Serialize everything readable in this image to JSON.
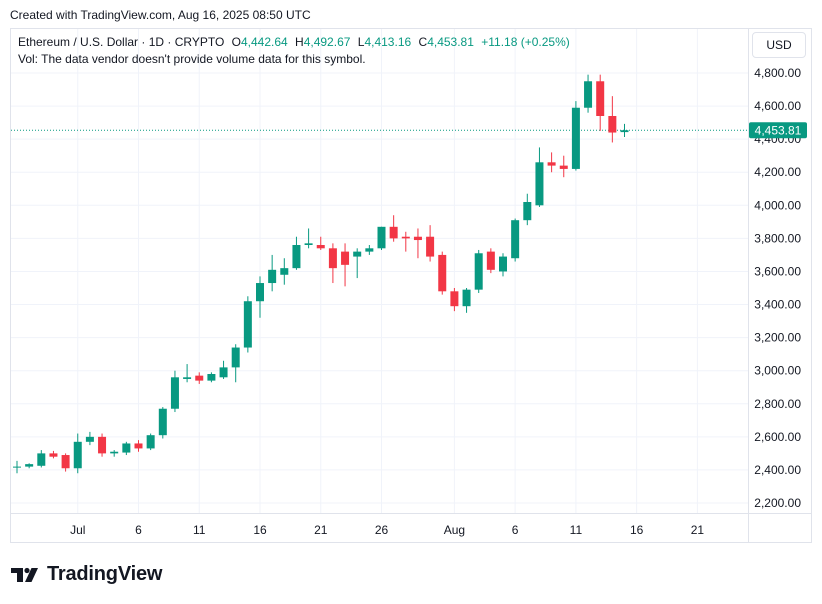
{
  "header": {
    "created": "Created with TradingView.com, Aug 16, 2025 08:50 UTC"
  },
  "legend": {
    "symbol": "Ethereum / U.S. Dollar · 1D · CRYPTO",
    "o_label": "O",
    "o_value": "4,442.64",
    "h_label": "H",
    "h_value": "4,492.67",
    "l_label": "L",
    "l_value": "4,413.16",
    "c_label": "C",
    "c_value": "4,453.81",
    "change": "+11.18 (+0.25%)",
    "vol_note": "Vol: The data vendor doesn't provide volume data for this symbol."
  },
  "currency_button": "USD",
  "branding": "TradingView",
  "colors": {
    "up": "#089981",
    "down": "#f23645",
    "grid": "#f0f3fa",
    "text": "#131722"
  },
  "chart_data": {
    "type": "candlestick",
    "y_axis": {
      "min": 2100,
      "max": 4900,
      "ticks": [
        2200,
        2400,
        2600,
        2800,
        3000,
        3200,
        3400,
        3600,
        3800,
        4000,
        4200,
        4400,
        4600,
        4800
      ],
      "tick_labels": [
        "2,200.00",
        "2,400.00",
        "2,600.00",
        "2,800.00",
        "3,000.00",
        "3,200.00",
        "3,400.00",
        "3,600.00",
        "3,800.00",
        "4,000.00",
        "4,200.00",
        "4,400.00",
        "4,600.00",
        "4,800.00"
      ]
    },
    "x_axis": {
      "labels": [
        {
          "date": "2025-07-01",
          "text": "Jul"
        },
        {
          "date": "2025-07-06",
          "text": "6"
        },
        {
          "date": "2025-07-11",
          "text": "11"
        },
        {
          "date": "2025-07-16",
          "text": "16"
        },
        {
          "date": "2025-07-21",
          "text": "21"
        },
        {
          "date": "2025-07-26",
          "text": "26"
        },
        {
          "date": "2025-08-01",
          "text": "Aug"
        },
        {
          "date": "2025-08-06",
          "text": "6"
        },
        {
          "date": "2025-08-11",
          "text": "11"
        },
        {
          "date": "2025-08-16",
          "text": "16"
        },
        {
          "date": "2025-08-21",
          "text": "21"
        }
      ]
    },
    "last_price": 4453.81,
    "last_price_label": "4,453.81",
    "candles": [
      {
        "date": "2025-06-26",
        "o": 2415,
        "h": 2455,
        "l": 2380,
        "c": 2420
      },
      {
        "date": "2025-06-27",
        "o": 2420,
        "h": 2440,
        "l": 2410,
        "c": 2435
      },
      {
        "date": "2025-06-28",
        "o": 2425,
        "h": 2520,
        "l": 2415,
        "c": 2500
      },
      {
        "date": "2025-06-29",
        "o": 2500,
        "h": 2515,
        "l": 2470,
        "c": 2480
      },
      {
        "date": "2025-06-30",
        "o": 2490,
        "h": 2500,
        "l": 2390,
        "c": 2410
      },
      {
        "date": "2025-07-01",
        "o": 2410,
        "h": 2620,
        "l": 2380,
        "c": 2570
      },
      {
        "date": "2025-07-02",
        "o": 2570,
        "h": 2630,
        "l": 2550,
        "c": 2600
      },
      {
        "date": "2025-07-03",
        "o": 2600,
        "h": 2620,
        "l": 2480,
        "c": 2500
      },
      {
        "date": "2025-07-04",
        "o": 2500,
        "h": 2520,
        "l": 2480,
        "c": 2510
      },
      {
        "date": "2025-07-05",
        "o": 2505,
        "h": 2570,
        "l": 2490,
        "c": 2560
      },
      {
        "date": "2025-07-06",
        "o": 2560,
        "h": 2580,
        "l": 2510,
        "c": 2530
      },
      {
        "date": "2025-07-07",
        "o": 2530,
        "h": 2620,
        "l": 2520,
        "c": 2610
      },
      {
        "date": "2025-07-08",
        "o": 2610,
        "h": 2780,
        "l": 2590,
        "c": 2770
      },
      {
        "date": "2025-07-09",
        "o": 2770,
        "h": 3000,
        "l": 2750,
        "c": 2960
      },
      {
        "date": "2025-07-10",
        "o": 2950,
        "h": 3040,
        "l": 2930,
        "c": 2960
      },
      {
        "date": "2025-07-11",
        "o": 2970,
        "h": 2990,
        "l": 2920,
        "c": 2940
      },
      {
        "date": "2025-07-12",
        "o": 2940,
        "h": 2990,
        "l": 2930,
        "c": 2980
      },
      {
        "date": "2025-07-13",
        "o": 2960,
        "h": 3060,
        "l": 2950,
        "c": 3020
      },
      {
        "date": "2025-07-14",
        "o": 3020,
        "h": 3160,
        "l": 2930,
        "c": 3140
      },
      {
        "date": "2025-07-15",
        "o": 3140,
        "h": 3450,
        "l": 3110,
        "c": 3420
      },
      {
        "date": "2025-07-16",
        "o": 3420,
        "h": 3570,
        "l": 3320,
        "c": 3530
      },
      {
        "date": "2025-07-17",
        "o": 3530,
        "h": 3700,
        "l": 3480,
        "c": 3610
      },
      {
        "date": "2025-07-18",
        "o": 3580,
        "h": 3680,
        "l": 3520,
        "c": 3620
      },
      {
        "date": "2025-07-19",
        "o": 3620,
        "h": 3810,
        "l": 3610,
        "c": 3760
      },
      {
        "date": "2025-07-20",
        "o": 3760,
        "h": 3860,
        "l": 3740,
        "c": 3770
      },
      {
        "date": "2025-07-21",
        "o": 3760,
        "h": 3810,
        "l": 3730,
        "c": 3740
      },
      {
        "date": "2025-07-22",
        "o": 3740,
        "h": 3770,
        "l": 3530,
        "c": 3620
      },
      {
        "date": "2025-07-23",
        "o": 3720,
        "h": 3770,
        "l": 3510,
        "c": 3640
      },
      {
        "date": "2025-07-24",
        "o": 3690,
        "h": 3740,
        "l": 3560,
        "c": 3720
      },
      {
        "date": "2025-07-25",
        "o": 3720,
        "h": 3760,
        "l": 3700,
        "c": 3740
      },
      {
        "date": "2025-07-26",
        "o": 3740,
        "h": 3870,
        "l": 3730,
        "c": 3870
      },
      {
        "date": "2025-07-27",
        "o": 3870,
        "h": 3940,
        "l": 3780,
        "c": 3800
      },
      {
        "date": "2025-07-28",
        "o": 3810,
        "h": 3840,
        "l": 3720,
        "c": 3800
      },
      {
        "date": "2025-07-29",
        "o": 3810,
        "h": 3860,
        "l": 3680,
        "c": 3790
      },
      {
        "date": "2025-07-30",
        "o": 3810,
        "h": 3880,
        "l": 3660,
        "c": 3690
      },
      {
        "date": "2025-07-31",
        "o": 3700,
        "h": 3720,
        "l": 3460,
        "c": 3480
      },
      {
        "date": "2025-08-01",
        "o": 3480,
        "h": 3500,
        "l": 3360,
        "c": 3390
      },
      {
        "date": "2025-08-02",
        "o": 3390,
        "h": 3500,
        "l": 3350,
        "c": 3490
      },
      {
        "date": "2025-08-03",
        "o": 3490,
        "h": 3730,
        "l": 3470,
        "c": 3710
      },
      {
        "date": "2025-08-04",
        "o": 3720,
        "h": 3740,
        "l": 3590,
        "c": 3610
      },
      {
        "date": "2025-08-05",
        "o": 3600,
        "h": 3710,
        "l": 3570,
        "c": 3690
      },
      {
        "date": "2025-08-06",
        "o": 3680,
        "h": 3920,
        "l": 3660,
        "c": 3910
      },
      {
        "date": "2025-08-07",
        "o": 3910,
        "h": 4070,
        "l": 3880,
        "c": 4020
      },
      {
        "date": "2025-08-08",
        "o": 4000,
        "h": 4350,
        "l": 3990,
        "c": 4260
      },
      {
        "date": "2025-08-09",
        "o": 4260,
        "h": 4320,
        "l": 4200,
        "c": 4240
      },
      {
        "date": "2025-08-10",
        "o": 4240,
        "h": 4300,
        "l": 4170,
        "c": 4220
      },
      {
        "date": "2025-08-11",
        "o": 4220,
        "h": 4630,
        "l": 4210,
        "c": 4590
      },
      {
        "date": "2025-08-12",
        "o": 4590,
        "h": 4790,
        "l": 4560,
        "c": 4750
      },
      {
        "date": "2025-08-13",
        "o": 4750,
        "h": 4790,
        "l": 4450,
        "c": 4540
      },
      {
        "date": "2025-08-14",
        "o": 4540,
        "h": 4660,
        "l": 4380,
        "c": 4440
      },
      {
        "date": "2025-08-15",
        "o": 4442.64,
        "h": 4492.67,
        "l": 4413.16,
        "c": 4453.81
      }
    ]
  }
}
